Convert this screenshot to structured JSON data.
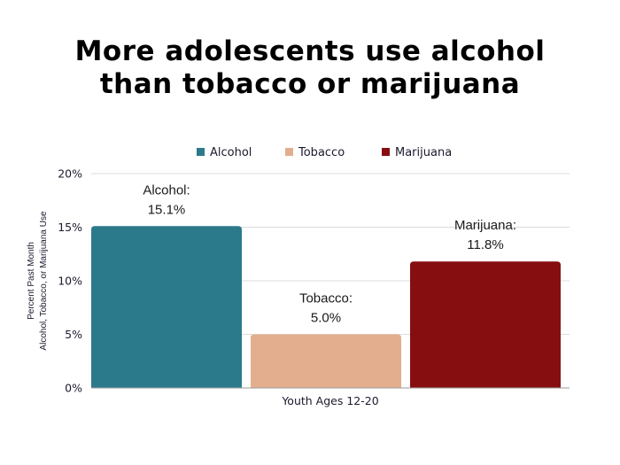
{
  "chart_data": {
    "type": "bar",
    "title_lines": [
      "More adolescents use alcohol",
      "than tobacco or marijuana"
    ],
    "xlabel": "Youth Ages 12-20",
    "ylabel_lines": [
      "Percent Past Month",
      "Alcohol, Tobacco, or Marijuana Use"
    ],
    "ylim": [
      0,
      20
    ],
    "yticks": [
      0,
      5,
      10,
      15,
      20
    ],
    "ytick_labels": [
      "0%",
      "5%",
      "10%",
      "15%",
      "20%"
    ],
    "grid": true,
    "legend_position": "top",
    "series": [
      {
        "name": "Alcohol",
        "value": 15.1,
        "color": "#2B7A8C",
        "label_lines": [
          "Alcohol:",
          "15.1%"
        ]
      },
      {
        "name": "Tobacco",
        "value": 5.0,
        "color": "#E2AE8E",
        "label_lines": [
          "Tobacco:",
          "5.0%"
        ]
      },
      {
        "name": "Marijuana",
        "value": 11.8,
        "color": "#870E10",
        "label_lines": [
          "Marijuana:",
          "11.8%"
        ]
      }
    ]
  }
}
